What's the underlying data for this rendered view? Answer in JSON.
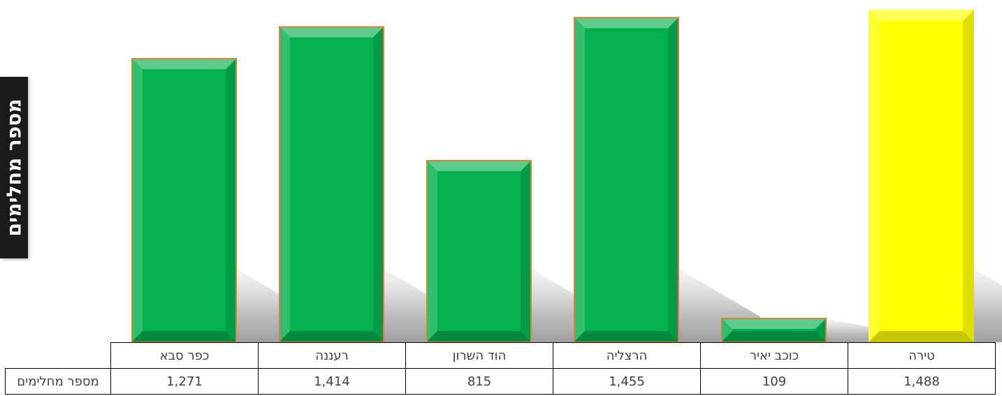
{
  "chart_data": {
    "type": "bar",
    "categories": [
      "כפר סבא",
      "רעננה",
      "הוד השרון",
      "הרצליה",
      "כוכב יאיר",
      "טירה"
    ],
    "values": [
      1271,
      1414,
      815,
      1455,
      109,
      1488
    ],
    "value_labels": [
      "1,271",
      "1,414",
      "815",
      "1,455",
      "109",
      "1,488"
    ],
    "series": [
      {
        "name": "מספר מחלימים",
        "values": [
          1271,
          1414,
          815,
          1455,
          109,
          1488
        ]
      }
    ],
    "bar_colors": [
      "#05b04f",
      "#05b04f",
      "#05b04f",
      "#05b04f",
      "#05b04f",
      "#ffff00"
    ],
    "border_color": "#d9823b",
    "ylabel": "מספר מחלימים",
    "xlabel": "",
    "title": "",
    "ylim": [
      0,
      1500
    ],
    "grid": false,
    "legend": "none",
    "data_table": true
  }
}
